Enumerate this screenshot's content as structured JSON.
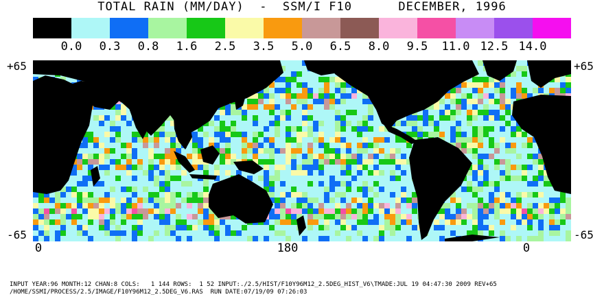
{
  "title": "TOTAL RAIN (MM/DAY)  -  SSM/I F10      DECEMBER, 1996",
  "legend": {
    "colors": [
      "#000000",
      "#aef7f7",
      "#0f6ef5",
      "#a8f5a0",
      "#17c817",
      "#fafaa8",
      "#f99a0f",
      "#c89898",
      "#8c5a55",
      "#fab4dc",
      "#f550a5",
      "#c88cf5",
      "#9b50ec",
      "#f50fef"
    ],
    "labels": [
      "0.0",
      "0.3",
      "0.8",
      "1.6",
      "2.5",
      "3.5",
      "5.0",
      "6.5",
      "8.0",
      "9.5",
      "11.0",
      "12.5",
      "14.0"
    ]
  },
  "axes": {
    "lat_top": "+65",
    "lat_bottom": "-65",
    "lon_left": "0",
    "lon_mid": "180",
    "lon_right": "0"
  },
  "footer": {
    "line1": "INPUT YEAR:96 MONTH:12 CHAN:8 COLS:   1 144 ROWS:  1 52 INPUT:./2.5/HIST/F10Y96M12_2.5DEG_HIST_V6\\TMADE:JUL 19 04:47:30 2009 REV+65",
    "line2": "/HOME/SSMI/PROCESS/2.5/IMAGE/F10Y96M12_2.5DEG_V6.RAS  RUN DATE:07/19/09 07:26:03"
  }
}
